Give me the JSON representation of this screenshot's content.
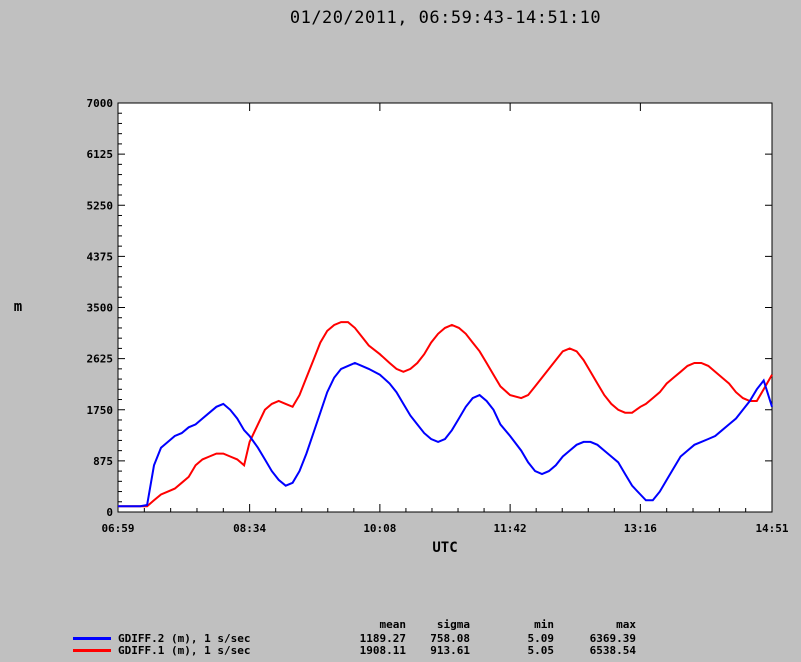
{
  "title": "01/20/2011, 06:59:43-14:51:10",
  "colors": {
    "background": "#c0c0c0",
    "plot_background": "#ffffff",
    "series_blue": "#0000ff",
    "series_red": "#ff0000"
  },
  "stats": {
    "headers": {
      "mean": "mean",
      "sigma": "sigma",
      "min": "min",
      "max": "max"
    },
    "rows": [
      {
        "name": "GDIFF.2 (m), 1 s/sec",
        "color": "#0000ff",
        "mean": "1189.27",
        "sigma": "758.08",
        "min": "5.09",
        "max": "6369.39"
      },
      {
        "name": "GDIFF.1 (m), 1 s/sec",
        "color": "#ff0000",
        "mean": "1908.11",
        "sigma": "913.61",
        "min": "5.05",
        "max": "6538.54"
      }
    ]
  },
  "chart_data": {
    "type": "line",
    "title": "01/20/2011, 06:59:43-14:51:10",
    "xlabel": "UTC",
    "ylabel": "m",
    "x_ticks": [
      "06:59",
      "08:34",
      "10:08",
      "11:42",
      "13:16",
      "14:51"
    ],
    "y_ticks": [
      "0",
      "875",
      "1750",
      "2625",
      "3500",
      "4375",
      "5250",
      "6125",
      "7000"
    ],
    "xlim": [
      "06:59",
      "14:51"
    ],
    "ylim": [
      0,
      7000
    ],
    "grid": false,
    "x": [
      "06:59",
      "07:05",
      "07:10",
      "07:15",
      "07:20",
      "07:25",
      "07:30",
      "07:35",
      "07:40",
      "07:45",
      "07:50",
      "07:55",
      "08:00",
      "08:05",
      "08:10",
      "08:15",
      "08:20",
      "08:25",
      "08:30",
      "08:34",
      "08:40",
      "08:45",
      "08:50",
      "08:55",
      "09:00",
      "09:05",
      "09:10",
      "09:15",
      "09:20",
      "09:25",
      "09:30",
      "09:35",
      "09:40",
      "09:45",
      "09:50",
      "09:55",
      "10:00",
      "10:08",
      "10:15",
      "10:20",
      "10:25",
      "10:30",
      "10:35",
      "10:40",
      "10:45",
      "10:50",
      "10:55",
      "11:00",
      "11:05",
      "11:10",
      "11:15",
      "11:20",
      "11:25",
      "11:30",
      "11:35",
      "11:42",
      "11:50",
      "11:55",
      "12:00",
      "12:05",
      "12:10",
      "12:15",
      "12:20",
      "12:25",
      "12:30",
      "12:35",
      "12:40",
      "12:45",
      "12:50",
      "12:55",
      "13:00",
      "13:05",
      "13:10",
      "13:16",
      "13:20",
      "13:25",
      "13:30",
      "13:35",
      "13:40",
      "13:45",
      "13:50",
      "13:55",
      "14:00",
      "14:05",
      "14:10",
      "14:15",
      "14:20",
      "14:25",
      "14:30",
      "14:35",
      "14:40",
      "14:45",
      "14:51"
    ],
    "series": [
      {
        "name": "GDIFF.2 (m), 1 s/sec",
        "color": "#0000ff",
        "values": [
          100,
          100,
          100,
          100,
          120,
          800,
          1100,
          1200,
          1300,
          1350,
          1450,
          1500,
          1600,
          1700,
          1800,
          1850,
          1750,
          1600,
          1400,
          1300,
          1100,
          900,
          700,
          550,
          450,
          500,
          700,
          1000,
          1350,
          1700,
          2050,
          2300,
          2450,
          2500,
          2550,
          2500,
          2450,
          2350,
          2200,
          2050,
          1850,
          1650,
          1500,
          1350,
          1250,
          1200,
          1250,
          1400,
          1600,
          1800,
          1950,
          2000,
          1900,
          1750,
          1500,
          1300,
          1050,
          850,
          700,
          650,
          700,
          800,
          950,
          1050,
          1150,
          1200,
          1200,
          1150,
          1050,
          950,
          850,
          650,
          450,
          300,
          200,
          200,
          350,
          550,
          750,
          950,
          1050,
          1150,
          1200,
          1250,
          1300,
          1400,
          1500,
          1600,
          1750,
          1900,
          2100,
          2250,
          1800
        ]
      },
      {
        "name": "GDIFF.1 (m), 1 s/sec",
        "color": "#ff0000",
        "values": [
          100,
          100,
          100,
          100,
          100,
          200,
          300,
          350,
          400,
          500,
          600,
          800,
          900,
          950,
          1000,
          1000,
          950,
          900,
          800,
          1200,
          1500,
          1750,
          1850,
          1900,
          1850,
          1800,
          2000,
          2300,
          2600,
          2900,
          3100,
          3200,
          3250,
          3250,
          3150,
          3000,
          2850,
          2700,
          2550,
          2450,
          2400,
          2450,
          2550,
          2700,
          2900,
          3050,
          3150,
          3200,
          3150,
          3050,
          2900,
          2750,
          2550,
          2350,
          2150,
          2000,
          1950,
          2000,
          2150,
          2300,
          2450,
          2600,
          2750,
          2800,
          2750,
          2600,
          2400,
          2200,
          2000,
          1850,
          1750,
          1700,
          1700,
          1800,
          1850,
          1950,
          2050,
          2200,
          2300,
          2400,
          2500,
          2550,
          2550,
          2500,
          2400,
          2300,
          2200,
          2050,
          1950,
          1900,
          1900,
          2100,
          2350
        ]
      }
    ]
  }
}
